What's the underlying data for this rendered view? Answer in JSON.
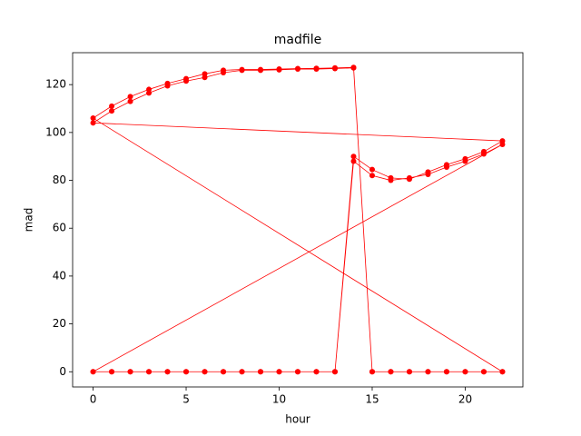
{
  "chart_data": {
    "type": "line",
    "title": "madfile",
    "x_label": "hour",
    "y_label": "mad",
    "x": [
      0,
      1,
      2,
      3,
      4,
      5,
      6,
      7,
      8,
      9,
      10,
      11,
      12,
      13,
      14,
      15,
      16,
      17,
      18,
      19,
      20,
      21,
      22,
      0,
      1,
      2,
      3,
      4,
      5,
      6,
      7,
      8,
      9,
      10,
      11,
      12,
      13,
      14,
      15,
      16,
      17,
      18,
      19,
      20,
      21,
      22,
      0,
      1,
      2,
      3,
      4,
      5,
      6,
      7,
      8,
      9,
      10,
      11,
      12,
      13,
      14,
      15,
      16,
      17,
      18,
      19,
      20,
      21,
      22,
      0,
      1,
      2,
      3,
      4,
      5,
      6,
      7,
      8,
      9,
      10,
      11,
      12,
      13,
      14,
      15,
      16,
      17,
      18,
      19,
      20,
      21,
      22
    ],
    "series": [
      {
        "color": "#ff0000",
        "values": [
          0,
          0,
          0,
          0,
          0,
          0,
          0,
          0,
          0,
          0,
          0,
          0,
          0,
          0,
          88,
          82,
          80,
          81,
          82.5,
          85.5,
          88,
          91,
          95,
          0,
          0,
          0,
          0,
          0,
          0,
          0,
          0,
          0,
          0,
          0,
          0,
          0,
          0,
          90,
          84.5,
          81,
          80.5,
          83.5,
          86.5,
          89,
          92,
          96.5,
          104,
          109,
          113,
          116.5,
          119.5,
          121.5,
          123,
          125,
          126,
          126,
          126.2,
          126.5,
          126.5,
          126.7,
          127,
          0,
          0,
          0,
          0,
          0,
          0,
          0,
          0,
          106,
          111,
          115,
          118,
          120.5,
          122.5,
          124.5,
          126,
          126.3,
          126.3,
          126.5,
          126.7,
          126.8,
          127,
          127.2,
          0,
          0,
          0,
          0,
          0,
          0,
          0,
          0
        ]
      }
    ],
    "xlim": [
      -1.1,
      23.1
    ],
    "ylim": [
      -6.35,
      133.35
    ],
    "xticks": [
      0,
      5,
      10,
      15,
      20
    ],
    "yticks": [
      0,
      20,
      40,
      60,
      80,
      100,
      120
    ]
  }
}
